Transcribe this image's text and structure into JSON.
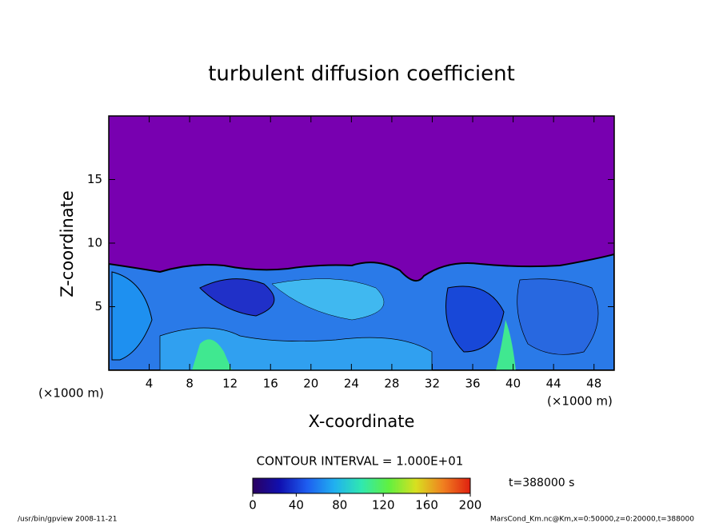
{
  "chart_data": {
    "type": "contour",
    "title": "turbulent diffusion coefficient",
    "x_label": "X-coordinate",
    "y_label": "Z-coordinate",
    "x_unit": "(×1000 m)",
    "y_unit": "(×1000 m)",
    "xlim": [
      0,
      50
    ],
    "xticks": [
      4,
      8,
      12,
      16,
      20,
      24,
      28,
      32,
      36,
      40,
      44,
      48
    ],
    "ylim": [
      0,
      20
    ],
    "yticks": [
      5,
      10,
      15
    ],
    "contour_interval": "CONTOUR INTERVAL = 1.000E+01",
    "time_label": "t=388000 s",
    "colorbar": {
      "lim": [
        0,
        200
      ],
      "ticks": [
        0,
        40,
        80,
        120,
        160,
        200
      ],
      "colors": [
        "#2a0060",
        "#1010b0",
        "#1e5ef0",
        "#20b0f0",
        "#30e8b0",
        "#60f040",
        "#d8e020",
        "#f08020",
        "#e02010"
      ]
    },
    "footer_left": "/usr/bin/gpview  2008-11-21",
    "footer_right": "MarsCond_Km.nc@Km,x=0:50000,z=0:20000,t=388000"
  }
}
